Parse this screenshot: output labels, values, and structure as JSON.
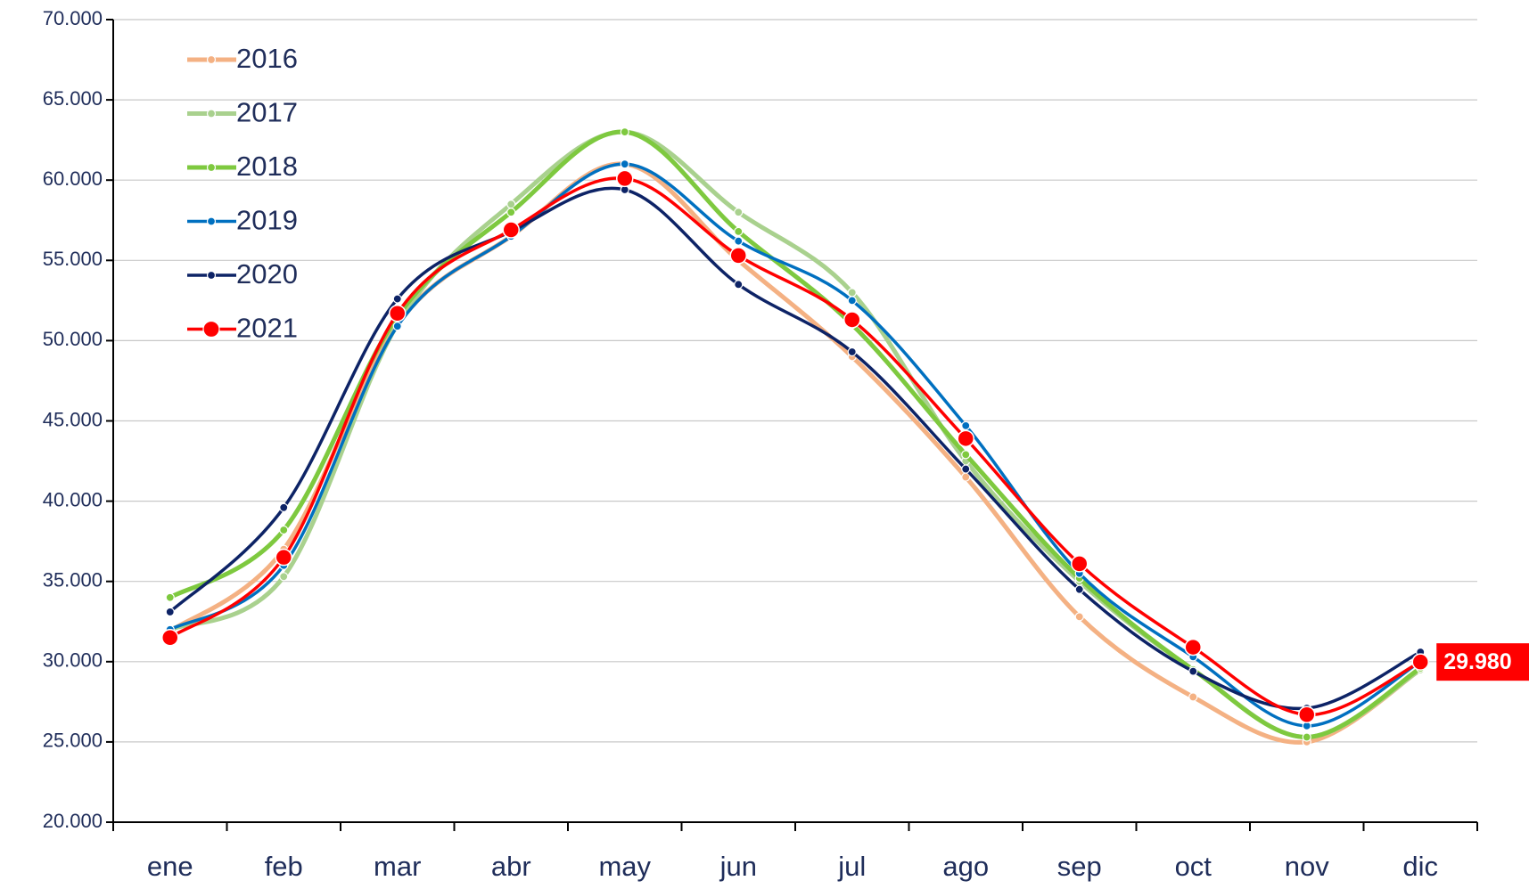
{
  "chart_data": {
    "type": "line",
    "categories": [
      "ene",
      "feb",
      "mar",
      "abr",
      "may",
      "jun",
      "jul",
      "ago",
      "sep",
      "oct",
      "nov",
      "dic"
    ],
    "series": [
      {
        "name": "2016",
        "color": "#f4b183",
        "marker": "small",
        "values": [
          31900,
          37000,
          51000,
          56500,
          61000,
          55000,
          49000,
          41500,
          32800,
          27800,
          25000,
          29500
        ]
      },
      {
        "name": "2017",
        "color": "#a9d18e",
        "marker": "small",
        "values": [
          32000,
          35300,
          51000,
          58500,
          63000,
          58000,
          53000,
          42500,
          35000,
          29500,
          25300,
          29500
        ]
      },
      {
        "name": "2018",
        "color": "#7ec93f",
        "marker": "small",
        "values": [
          34000,
          38200,
          51500,
          58000,
          63000,
          56800,
          51000,
          42900,
          35200,
          29500,
          25300,
          29600
        ]
      },
      {
        "name": "2019",
        "color": "#0070c0",
        "marker": "small",
        "values": [
          32000,
          36000,
          50900,
          56500,
          61000,
          56200,
          52500,
          44700,
          35500,
          30300,
          26000,
          30000
        ]
      },
      {
        "name": "2020",
        "color": "#0d2366",
        "marker": "small",
        "values": [
          33100,
          39600,
          52600,
          56800,
          59400,
          53500,
          49300,
          42000,
          34500,
          29400,
          27100,
          30600
        ]
      },
      {
        "name": "2021",
        "color": "#ff0000",
        "marker": "large",
        "values": [
          31500,
          36500,
          51700,
          56900,
          60100,
          55300,
          51300,
          43900,
          36100,
          30900,
          26700,
          29980
        ],
        "value_labels": [
          null,
          null,
          null,
          null,
          null,
          null,
          null,
          null,
          null,
          null,
          null,
          "29.980"
        ]
      }
    ],
    "ylim": [
      20000,
      70000
    ],
    "yticks": [
      {
        "value": 20000,
        "label": "20.000"
      },
      {
        "value": 25000,
        "label": "25.000"
      },
      {
        "value": 30000,
        "label": "30.000"
      },
      {
        "value": 35000,
        "label": "35.000"
      },
      {
        "value": 40000,
        "label": "40.000"
      },
      {
        "value": 45000,
        "label": "45.000"
      },
      {
        "value": 50000,
        "label": "50.000"
      },
      {
        "value": 55000,
        "label": "55.000"
      },
      {
        "value": 60000,
        "label": "60.000"
      },
      {
        "value": 65000,
        "label": "65.000"
      },
      {
        "value": 70000,
        "label": "70.000"
      }
    ],
    "grid": true,
    "legend": "top-left"
  }
}
